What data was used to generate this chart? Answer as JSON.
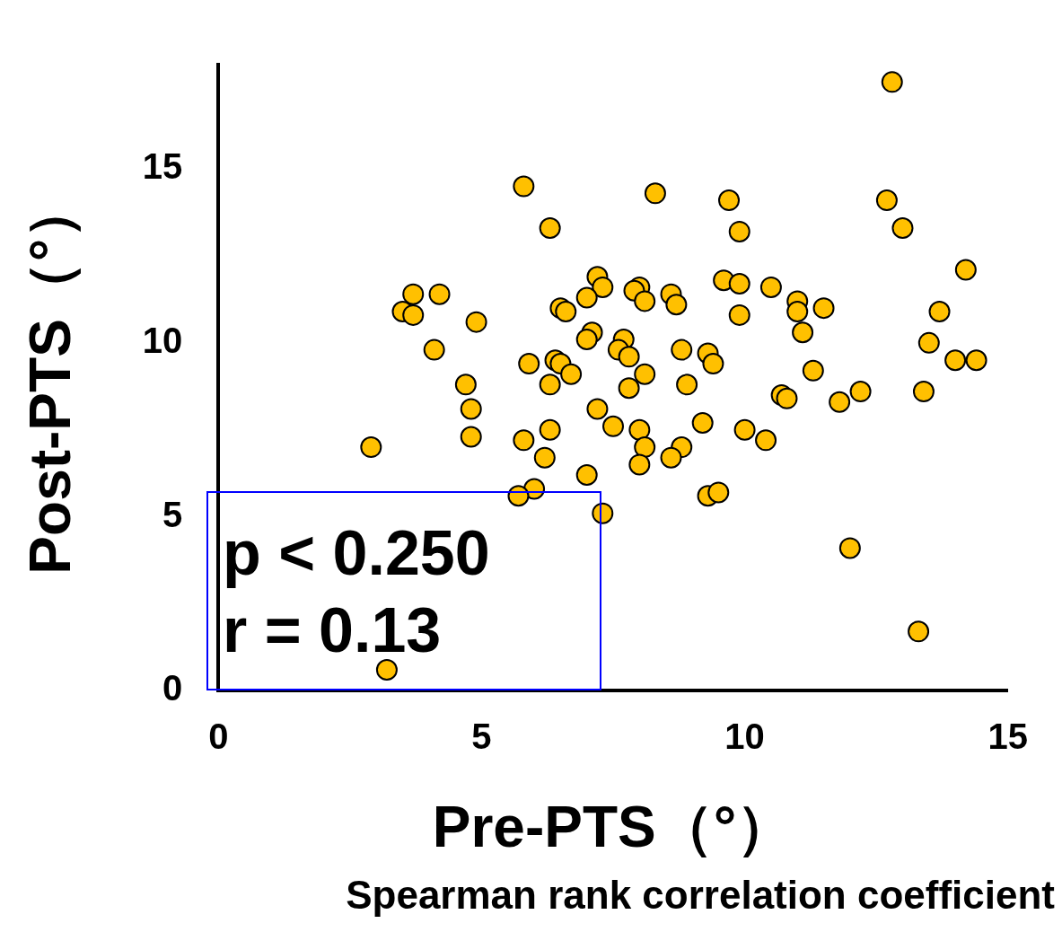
{
  "chart_data": {
    "type": "scatter",
    "xlabel": "Pre-PTS（°）",
    "ylabel": "Post-PTS（°）",
    "xlim": [
      0,
      15
    ],
    "ylim": [
      0,
      18
    ],
    "xticks": [
      0,
      5,
      10,
      15
    ],
    "yticks": [
      0,
      5,
      10,
      15
    ],
    "grid": false,
    "legend": false,
    "marker": "circle",
    "annotations": [
      "p < 0.250",
      "r = 0.13",
      "Spearman rank correlation coefficient"
    ],
    "series": [
      {
        "color": "#ffc000",
        "x": [
          12.8,
          5.8,
          8.3,
          9.7,
          12.7,
          6.3,
          9.9,
          13.0,
          14.2,
          7.2,
          7.3,
          9.6,
          9.9,
          10.5,
          8.0,
          7.9,
          3.7,
          4.2,
          7.0,
          8.6,
          8.1,
          8.7,
          11.0,
          3.5,
          3.7,
          6.5,
          6.6,
          11.0,
          11.5,
          13.7,
          9.9,
          4.9,
          7.1,
          11.1,
          7.0,
          7.7,
          13.5,
          4.1,
          7.6,
          8.8,
          9.3,
          7.8,
          14.0,
          14.4,
          5.9,
          6.4,
          6.5,
          9.4,
          6.7,
          8.1,
          11.3,
          4.7,
          6.3,
          8.9,
          7.8,
          10.7,
          10.8,
          12.2,
          13.4,
          11.8,
          4.8,
          7.2,
          9.2,
          7.5,
          6.3,
          8.0,
          10.0,
          4.8,
          5.8,
          10.4,
          2.9,
          8.1,
          8.8,
          6.2,
          8.6,
          8.0,
          7.0,
          6.0,
          5.7,
          9.3,
          9.5,
          7.3,
          12.0,
          13.3,
          3.2
        ],
        "values": [
          17.5,
          14.5,
          14.3,
          14.1,
          14.1,
          13.3,
          13.2,
          13.3,
          12.1,
          11.9,
          11.6,
          11.8,
          11.7,
          11.6,
          11.6,
          11.5,
          11.4,
          11.4,
          11.3,
          11.4,
          11.2,
          11.1,
          11.2,
          10.9,
          10.8,
          11.0,
          10.9,
          10.9,
          11.0,
          10.9,
          10.8,
          10.6,
          10.3,
          10.3,
          10.1,
          10.1,
          10.0,
          9.8,
          9.8,
          9.8,
          9.7,
          9.6,
          9.5,
          9.5,
          9.4,
          9.5,
          9.4,
          9.4,
          9.1,
          9.1,
          9.2,
          8.8,
          8.8,
          8.8,
          8.7,
          8.5,
          8.4,
          8.6,
          8.6,
          8.3,
          8.1,
          8.1,
          7.7,
          7.6,
          7.5,
          7.5,
          7.5,
          7.3,
          7.2,
          7.2,
          7.0,
          7.0,
          7.0,
          6.7,
          6.7,
          6.5,
          6.2,
          5.8,
          5.6,
          5.6,
          5.7,
          5.1,
          4.1,
          1.7,
          0.6
        ]
      }
    ]
  }
}
